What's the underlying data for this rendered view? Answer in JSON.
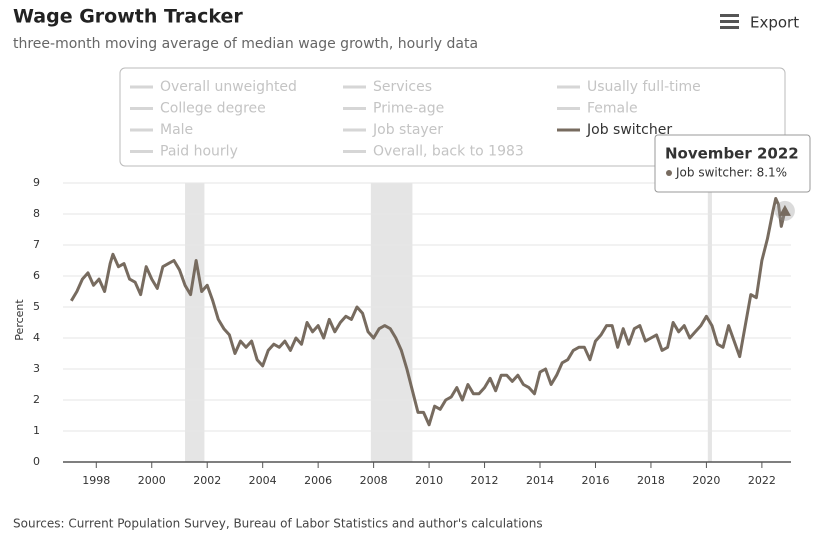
{
  "chart_data": {
    "type": "line",
    "title": "Wage Growth Tracker",
    "subtitle": "three-month moving average of median wage growth, hourly data",
    "export_label": "Export",
    "source": "Sources: Current Population Survey, Bureau of Labor Statistics and author's calculations",
    "ylabel": "Percent",
    "inactive_series": [
      "Overall unweighted",
      "Services",
      "Usually full-time",
      "College degree",
      "Prime-age",
      "Female",
      "Male",
      "Job stayer",
      "Paid hourly",
      "Overall, back to 1983"
    ],
    "recessions": [
      [
        2001.2,
        2001.9
      ],
      [
        2007.9,
        2009.4
      ],
      [
        2020.05,
        2020.2
      ]
    ],
    "x": [
      1997.1,
      1997.3,
      1997.5,
      1997.7,
      1997.9,
      1998.1,
      1998.3,
      1998.5,
      1998.6,
      1998.8,
      1999.0,
      1999.2,
      1999.4,
      1999.6,
      1999.8,
      2000.0,
      2000.2,
      2000.4,
      2000.6,
      2000.8,
      2001.0,
      2001.2,
      2001.4,
      2001.6,
      2001.8,
      2002.0,
      2002.2,
      2002.4,
      2002.6,
      2002.8,
      2003.0,
      2003.2,
      2003.4,
      2003.6,
      2003.8,
      2004.0,
      2004.2,
      2004.4,
      2004.6,
      2004.8,
      2005.0,
      2005.2,
      2005.4,
      2005.6,
      2005.8,
      2006.0,
      2006.2,
      2006.4,
      2006.6,
      2006.8,
      2007.0,
      2007.2,
      2007.4,
      2007.6,
      2007.8,
      2008.0,
      2008.2,
      2008.4,
      2008.6,
      2008.8,
      2009.0,
      2009.2,
      2009.4,
      2009.6,
      2009.8,
      2010.0,
      2010.2,
      2010.4,
      2010.6,
      2010.8,
      2011.0,
      2011.2,
      2011.4,
      2011.6,
      2011.8,
      2012.0,
      2012.2,
      2012.4,
      2012.6,
      2012.8,
      2013.0,
      2013.2,
      2013.4,
      2013.6,
      2013.8,
      2014.0,
      2014.2,
      2014.4,
      2014.6,
      2014.8,
      2015.0,
      2015.2,
      2015.4,
      2015.6,
      2015.8,
      2016.0,
      2016.2,
      2016.4,
      2016.6,
      2016.8,
      2017.0,
      2017.2,
      2017.4,
      2017.6,
      2017.8,
      2018.0,
      2018.2,
      2018.4,
      2018.6,
      2018.8,
      2019.0,
      2019.2,
      2019.4,
      2019.6,
      2019.8,
      2020.0,
      2020.2,
      2020.4,
      2020.6,
      2020.8,
      2021.0,
      2021.2,
      2021.4,
      2021.6,
      2021.8,
      2022.0,
      2022.2,
      2022.4,
      2022.5,
      2022.6,
      2022.7,
      2022.83
    ],
    "series": [
      {
        "name": "Job switcher",
        "color": "#776b5f",
        "values": [
          5.2,
          5.5,
          5.9,
          6.1,
          5.7,
          5.9,
          5.5,
          6.4,
          6.7,
          6.3,
          6.4,
          5.9,
          5.8,
          5.4,
          6.3,
          5.9,
          5.6,
          6.3,
          6.4,
          6.5,
          6.2,
          5.7,
          5.4,
          6.5,
          5.5,
          5.7,
          5.2,
          4.6,
          4.3,
          4.1,
          3.5,
          3.9,
          3.7,
          3.9,
          3.3,
          3.1,
          3.6,
          3.8,
          3.7,
          3.9,
          3.6,
          4.0,
          3.8,
          4.5,
          4.2,
          4.4,
          4.0,
          4.6,
          4.2,
          4.5,
          4.7,
          4.6,
          5.0,
          4.8,
          4.2,
          4.0,
          4.3,
          4.4,
          4.3,
          4.0,
          3.6,
          3.0,
          2.3,
          1.6,
          1.6,
          1.2,
          1.8,
          1.7,
          2.0,
          2.1,
          2.4,
          2.0,
          2.5,
          2.2,
          2.2,
          2.4,
          2.7,
          2.3,
          2.8,
          2.8,
          2.6,
          2.8,
          2.5,
          2.4,
          2.2,
          2.9,
          3.0,
          2.5,
          2.8,
          3.2,
          3.3,
          3.6,
          3.7,
          3.7,
          3.3,
          3.9,
          4.1,
          4.4,
          4.4,
          3.7,
          4.3,
          3.8,
          4.3,
          4.4,
          3.9,
          4.0,
          4.1,
          3.6,
          3.7,
          4.5,
          4.2,
          4.4,
          4.0,
          4.2,
          4.4,
          4.7,
          4.4,
          3.8,
          3.7,
          4.4,
          3.9,
          3.4,
          4.4,
          5.4,
          5.3,
          6.5,
          7.2,
          8.1,
          8.5,
          8.3,
          7.6,
          8.1
        ]
      }
    ],
    "tooltip": {
      "title": "November 2022",
      "text": "Job switcher: 8.1%"
    },
    "xlim": [
      1996.8,
      2023.05
    ],
    "xticks": [
      1998,
      2000,
      2002,
      2004,
      2006,
      2008,
      2010,
      2012,
      2014,
      2016,
      2018,
      2020,
      2022
    ],
    "ylim": [
      0,
      9
    ],
    "yticks": [
      0,
      1,
      2,
      3,
      4,
      5,
      6,
      7,
      8,
      9
    ],
    "grid": true
  }
}
